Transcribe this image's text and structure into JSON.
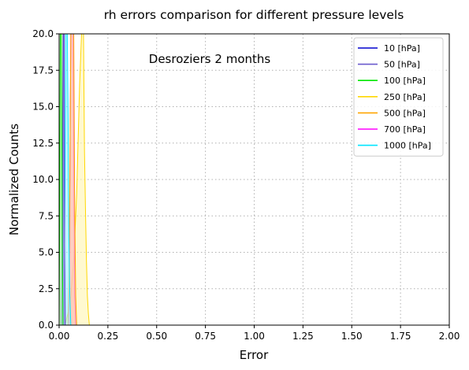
{
  "chart_data": {
    "type": "area",
    "title": "rh errors comparison for different pressure levels",
    "annotation": "Desroziers 2 months",
    "xlabel": "Error",
    "ylabel": "Normalized Counts",
    "xlim": [
      0,
      2.0
    ],
    "ylim": [
      0,
      20.0
    ],
    "x_ticks": [
      "0.00",
      "0.25",
      "0.50",
      "0.75",
      "1.00",
      "1.25",
      "1.50",
      "1.75",
      "2.00"
    ],
    "y_ticks": [
      "0.0",
      "2.5",
      "5.0",
      "7.5",
      "10.0",
      "12.5",
      "15.0",
      "17.5",
      "20.0"
    ],
    "grid": true,
    "legend_position": "top-right",
    "series": [
      {
        "name": "10 [hPa]",
        "color": "#0000cd",
        "fill": "#8080e6",
        "x": [
          0.018,
          0.02,
          0.022,
          0.024,
          0.026,
          0.028,
          0.03
        ],
        "y": [
          0,
          6,
          20,
          20,
          20,
          5,
          0
        ]
      },
      {
        "name": "50 [hPa]",
        "color": "#6a5acd",
        "fill": "#b4acf0",
        "x": [
          0.01,
          0.015,
          0.02,
          0.025,
          0.028,
          0.032
        ],
        "y": [
          0,
          5,
          20,
          20,
          6,
          0
        ]
      },
      {
        "name": "100 [hPa]",
        "color": "#00e600",
        "fill": "#99f099",
        "x": [
          0.0,
          0.003,
          0.006,
          0.009,
          0.012,
          0.016,
          0.02
        ],
        "y": [
          0,
          8,
          20,
          20,
          20,
          6,
          0
        ]
      },
      {
        "name": "250 [hPa]",
        "color": "#ffd700",
        "fill": "#fff5b0",
        "x": [
          0.03,
          0.045,
          0.06,
          0.075,
          0.09,
          0.1,
          0.105,
          0.115,
          0.12,
          0.125,
          0.13,
          0.135,
          0.14,
          0.145,
          0.15,
          0.155
        ],
        "y": [
          0,
          0.8,
          2.0,
          4.5,
          9.0,
          14.0,
          16.5,
          20,
          20,
          20,
          12.0,
          8.0,
          4.5,
          2.0,
          0.8,
          0
        ]
      },
      {
        "name": "500 [hPa]",
        "color": "#ffa500",
        "fill": "#ffd699",
        "x": [
          0.045,
          0.05,
          0.055,
          0.06,
          0.065,
          0.07,
          0.075,
          0.08,
          0.085,
          0.09
        ],
        "y": [
          0,
          3.0,
          10.0,
          20,
          20,
          20,
          20,
          8.0,
          2.0,
          0
        ]
      },
      {
        "name": "700 [hPa]",
        "color": "#ff00ff",
        "fill": "#ff99ff",
        "x": [
          0.05,
          0.053,
          0.056,
          0.06,
          0.064,
          0.068,
          0.072,
          0.076,
          0.08,
          0.085
        ],
        "y": [
          0,
          4.0,
          12.0,
          20,
          20,
          20,
          20,
          10.0,
          2.0,
          0
        ]
      },
      {
        "name": "1000 [hPa]",
        "color": "#00e5ff",
        "fill": "#99f2ff",
        "x": [
          0.02,
          0.026,
          0.03,
          0.034,
          0.038,
          0.042,
          0.046,
          0.05,
          0.055,
          0.06
        ],
        "y": [
          0,
          3.0,
          9.0,
          20,
          20,
          20,
          14.0,
          6.0,
          2.0,
          0
        ]
      }
    ]
  }
}
